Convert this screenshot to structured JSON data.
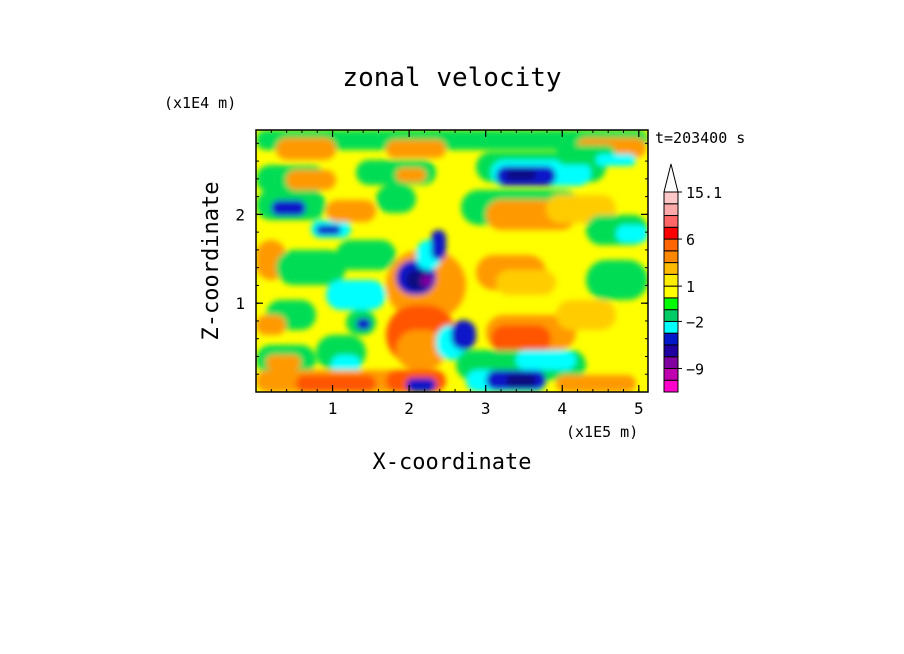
{
  "chart_data": {
    "type": "heatmap",
    "title": "zonal velocity",
    "xlabel": "X-coordinate",
    "ylabel": "Z-coordinate",
    "x_unit": "(x1E5 m)",
    "y_unit": "(x1E4 m)",
    "time_label": "t=203400 s",
    "xlim": [
      0,
      5.12
    ],
    "ylim": [
      0,
      2.95
    ],
    "x_ticks": [
      1,
      2,
      3,
      4,
      5
    ],
    "y_ticks": [
      1,
      2
    ],
    "colorbar": {
      "levels": [
        -12,
        -10.5,
        -9,
        -7,
        -5,
        -3.5,
        -2,
        -1,
        0,
        1,
        2,
        3,
        4.5,
        6,
        8,
        10.5,
        13,
        15.1
      ],
      "colors": [
        "#ff00cc",
        "#c000b0",
        "#8000a0",
        "#2000a0",
        "#0018c8",
        "#00ffff",
        "#00cc66",
        "#00ff00",
        "#ffff00",
        "#ffee00",
        "#ffbb00",
        "#ff8800",
        "#ff6600",
        "#ff0000",
        "#ff6666",
        "#ffaaaa",
        "#ffc8c8"
      ],
      "tick_labels": [
        "15.1",
        "6",
        "1",
        "−2",
        "−9"
      ],
      "tick_values": [
        15.1,
        6,
        1,
        -2,
        -9
      ]
    }
  }
}
